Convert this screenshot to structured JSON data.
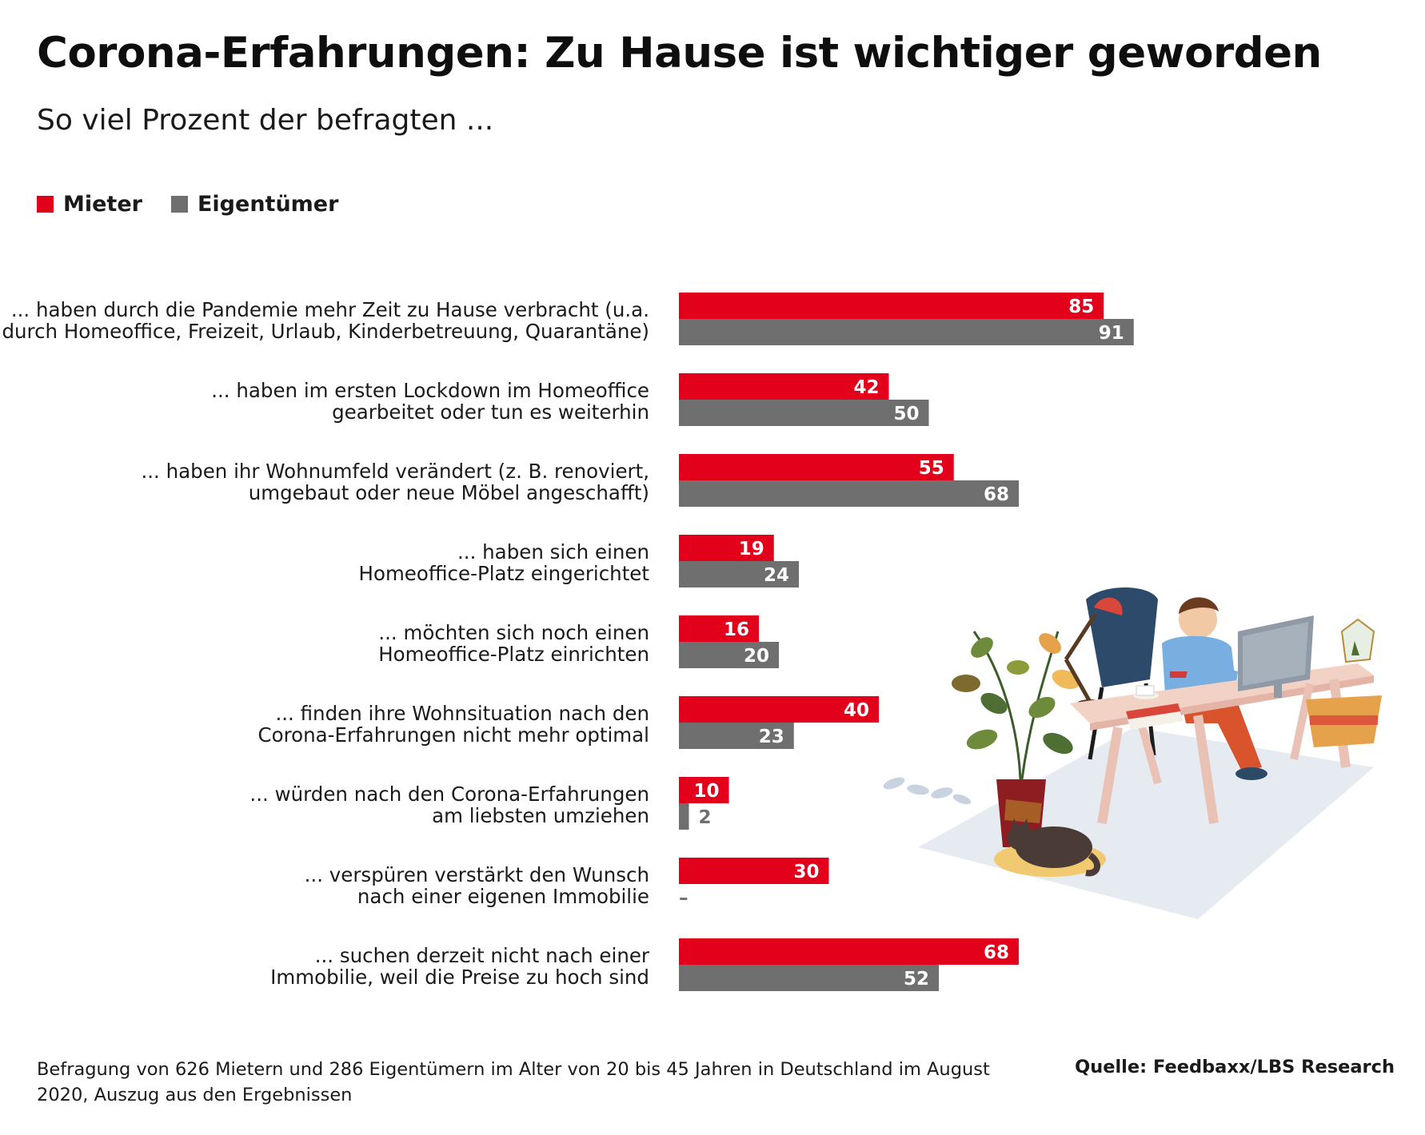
{
  "title": "Corona-Erfahrungen: Zu Hause ist wichtiger geworden",
  "subtitle": "So viel Prozent der befragten ...",
  "footnote": "Befragung von 626 Mietern und 286 Eigentümern im Alter von 20 bis 45 Jahren in Deutschland im August 2020, Auszug aus den Ergebnissen",
  "source": "Quelle: Feedbaxx/LBS Research",
  "colors": {
    "mieter": "#e2001a",
    "eigentuemer": "#6f6f6f"
  },
  "chart_data": {
    "type": "bar",
    "orientation": "horizontal",
    "title": "Corona-Erfahrungen: Zu Hause ist wichtiger geworden",
    "subtitle": "So viel Prozent der befragten ...",
    "xlim": [
      0,
      100
    ],
    "grid": false,
    "legend_position": "top-left",
    "categories": [
      [
        "... haben durch die Pandemie mehr Zeit zu Hause verbracht (u.a.",
        "durch Homeoffice, Freizeit, Urlaub, Kinderbetreuung, Quarantäne)"
      ],
      [
        "... haben im ersten Lockdown im Homeoffice",
        "gearbeitet oder tun es weiterhin"
      ],
      [
        "... haben ihr Wohnumfeld verändert (z. B. renoviert,",
        "umgebaut oder neue Möbel angeschafft)"
      ],
      [
        "... haben sich einen",
        "Homeoffice-Platz eingerichtet"
      ],
      [
        "... möchten sich noch einen",
        "Homeoffice-Platz einrichten"
      ],
      [
        "... finden ihre Wohnsituation nach den",
        "Corona-Erfahrungen nicht mehr optimal"
      ],
      [
        "... würden nach den Corona-Erfahrungen",
        "am liebsten umziehen"
      ],
      [
        "... verspüren verstärkt den Wunsch",
        "nach einer eigenen Immobilie"
      ],
      [
        "... suchen derzeit nicht nach einer",
        "Immobilie, weil die Preise zu hoch sind"
      ]
    ],
    "series": [
      {
        "name": "Mieter",
        "color": "#e2001a",
        "values": [
          85,
          42,
          55,
          19,
          16,
          40,
          10,
          30,
          68
        ]
      },
      {
        "name": "Eigentümer",
        "color": "#6f6f6f",
        "values": [
          91,
          50,
          68,
          24,
          20,
          23,
          2,
          null,
          52
        ]
      }
    ],
    "missing_marker": "–"
  }
}
